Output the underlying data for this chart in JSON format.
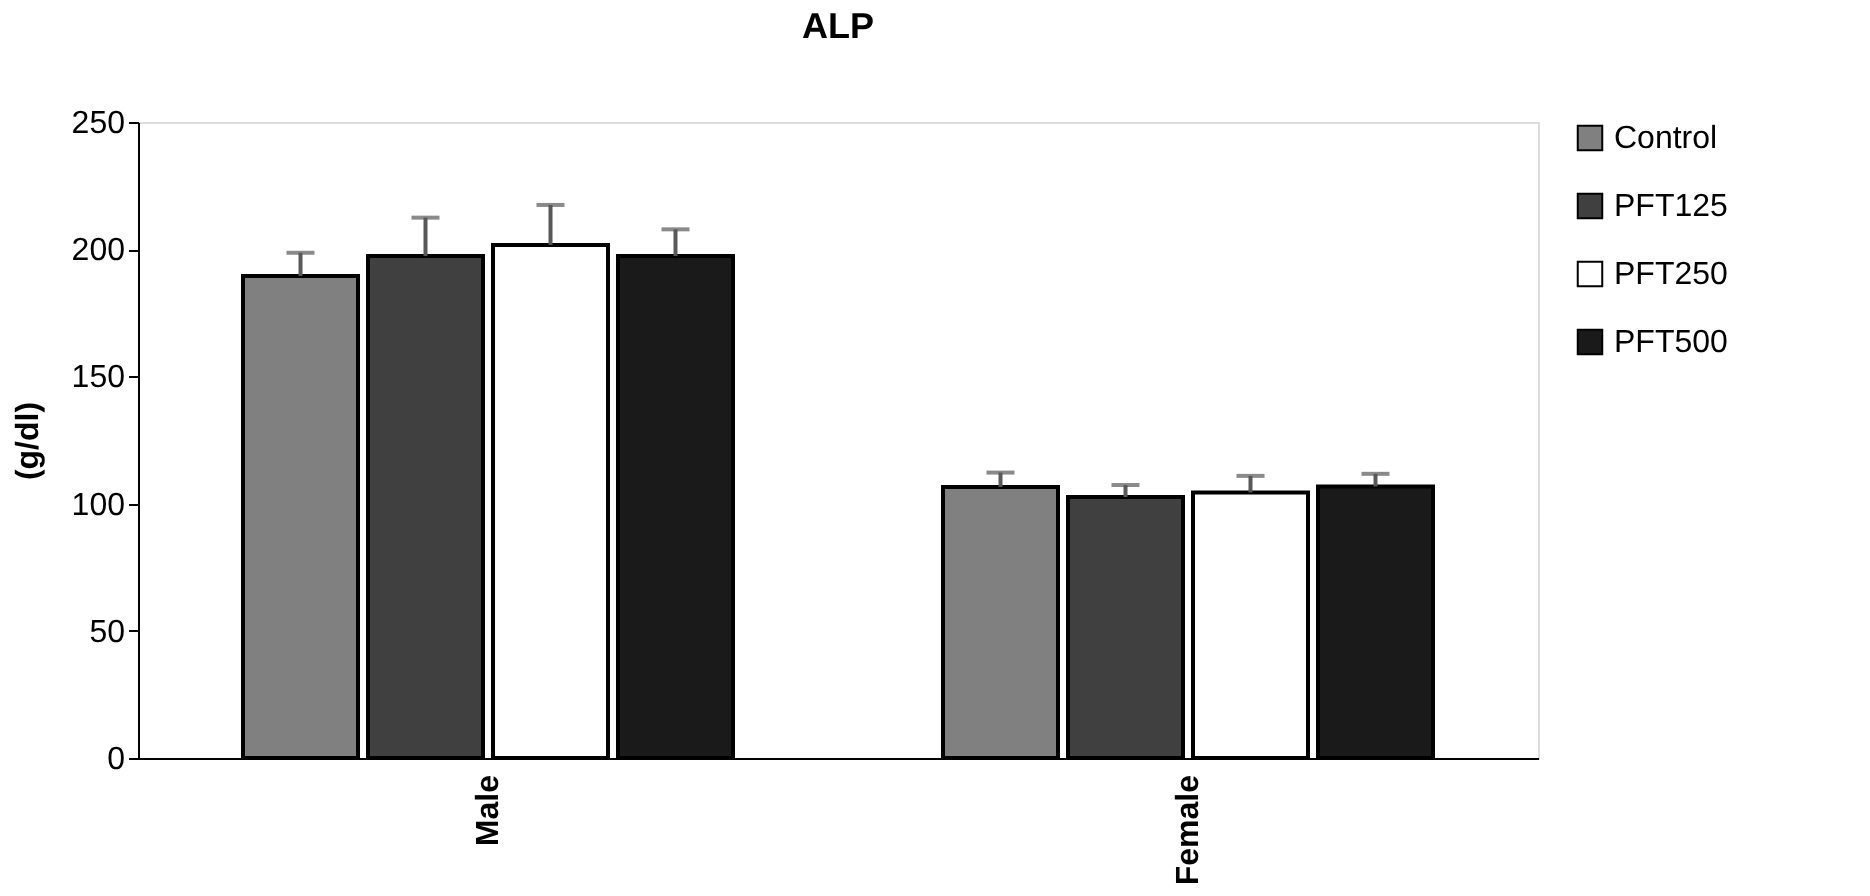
{
  "chart_data": {
    "type": "bar",
    "title": "ALP",
    "ylabel": "(g/dl)",
    "categories": [
      "Male",
      "Female"
    ],
    "series": [
      {
        "name": "Control",
        "color": "#808080",
        "values": [
          189.5,
          106.5
        ],
        "errors": [
          [
            189.5,
            198.6
          ],
          [
            106.5,
            112.2
          ]
        ]
      },
      {
        "name": "PFT125",
        "color": "#404040",
        "values": [
          197.3,
          102.6
        ],
        "errors": [
          [
            197.3,
            212.4
          ],
          [
            102.6,
            107.3
          ]
        ]
      },
      {
        "name": "PFT250",
        "color": "#ffffff",
        "values": [
          201.7,
          104.4
        ],
        "errors": [
          [
            201.7,
            217.4
          ],
          [
            104.4,
            110.9
          ]
        ]
      },
      {
        "name": "PFT500",
        "color": "#1a1a1a",
        "values": [
          197.3,
          106.7
        ],
        "errors": [
          [
            197.3,
            207.8
          ],
          [
            106.7,
            111.7
          ]
        ]
      }
    ],
    "ylim": [
      0,
      250
    ],
    "yticks": [
      0,
      50,
      100,
      150,
      200,
      250
    ],
    "grid": false,
    "legend": "right"
  }
}
